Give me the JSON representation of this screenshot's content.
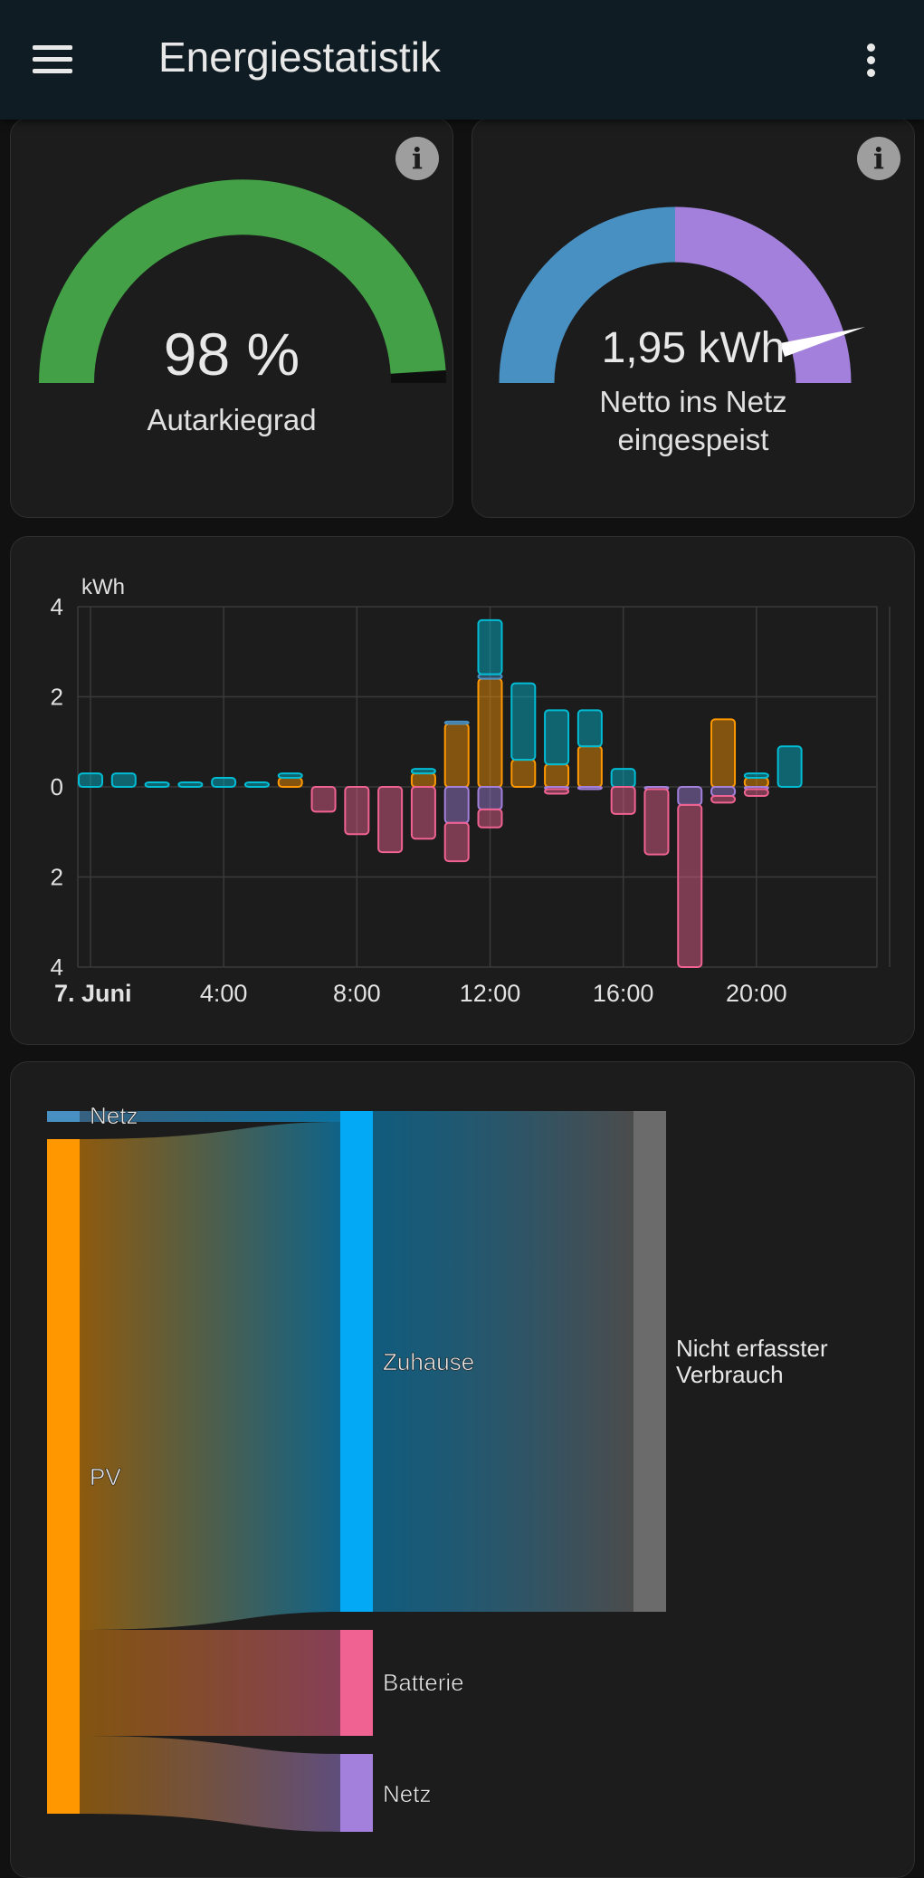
{
  "header": {
    "title": "Energiestatistik",
    "menu_icon": "hamburger-menu-icon",
    "more_icon": "dots-vertical-icon"
  },
  "gauges": [
    {
      "value_text": "98 %",
      "label": "Autarkiegrad",
      "value": 98,
      "unit": "%",
      "color": "#43a047"
    },
    {
      "value_text": "1,95 kWh",
      "label_line1": "Netto ins Netz",
      "label_line2": "eingespeist",
      "colors": [
        "#488fc2",
        "#a280db"
      ]
    }
  ],
  "chart_data": {
    "type": "bar",
    "ylabel": "kWh",
    "y_ticks": [
      "4",
      "2",
      "0",
      "2",
      "4"
    ],
    "ylim": [
      -4,
      4
    ],
    "x_ticks": [
      "7. Juni",
      "4:00",
      "8:00",
      "12:00",
      "16:00",
      "20:00"
    ],
    "grid": true,
    "categories": [
      "0:00",
      "1:00",
      "2:00",
      "3:00",
      "4:00",
      "5:00",
      "6:00",
      "7:00",
      "8:00",
      "9:00",
      "10:00",
      "11:00",
      "12:00",
      "13:00",
      "14:00",
      "15:00",
      "16:00",
      "17:00",
      "18:00",
      "19:00",
      "20:00",
      "21:00"
    ],
    "series": [
      {
        "color": "#ff9800",
        "values": [
          0,
          0,
          0,
          0,
          0,
          0,
          0.2,
          0,
          0,
          0,
          0.3,
          1.4,
          2.4,
          0.6,
          0.5,
          0.9,
          0,
          0,
          0,
          1.5,
          0.2,
          0
        ]
      },
      {
        "color": "#488fc2",
        "values": [
          0,
          0,
          0,
          0,
          0,
          0,
          0,
          0,
          0,
          0,
          0,
          0.05,
          0.1,
          0,
          0,
          0,
          0,
          0,
          0,
          0,
          0,
          0
        ]
      },
      {
        "color": "#00bcd4",
        "values": [
          0.3,
          0.3,
          0.1,
          0.1,
          0.2,
          0.1,
          0.1,
          0,
          0,
          0,
          0.1,
          0,
          1.2,
          1.7,
          1.2,
          0.8,
          0.4,
          0,
          0,
          0,
          0.1,
          0.9
        ]
      },
      {
        "color": "#a280db",
        "values": [
          0,
          0,
          0,
          0,
          0,
          0,
          0,
          0,
          0,
          0,
          0,
          -0.8,
          -0.5,
          0,
          -0.05,
          -0.05,
          0,
          -0.05,
          -0.4,
          -0.2,
          -0.05,
          0
        ]
      },
      {
        "color": "#f06292",
        "values": [
          0,
          0,
          0,
          0,
          0,
          0,
          0,
          -0.55,
          -1.05,
          -1.45,
          -1.15,
          -0.85,
          -0.4,
          0,
          -0.1,
          0,
          -0.6,
          -1.45,
          -3.6,
          -0.15,
          -0.15,
          0
        ]
      }
    ]
  },
  "sankey": {
    "nodes": {
      "netz_in": "Netz",
      "pv": "PV",
      "zuhause": "Zuhause",
      "batterie": "Batterie",
      "netz_out": "Netz",
      "nicht_line1": "Nicht erfasster",
      "nicht_line2": "Verbrauch"
    },
    "colors": {
      "netz_in": "#488fc2",
      "pv": "#ff9800",
      "zuhause": "#03a9f4",
      "batterie": "#f06292",
      "netz_out": "#a280db",
      "nicht": "#6b6b6b"
    }
  }
}
